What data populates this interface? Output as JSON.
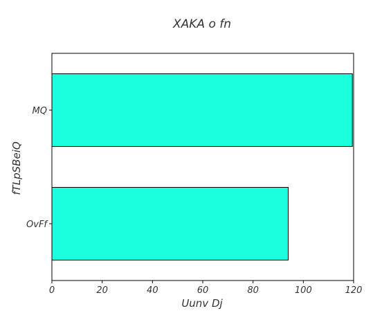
{
  "chart_data": {
    "type": "bar",
    "orientation": "horizontal",
    "title": "XAKA o fn",
    "xlabel": "Uunv  Dj",
    "ylabel": "fTLpSBeiQ",
    "categories": [
      "MQ",
      "OvFf"
    ],
    "values": [
      119.5,
      94
    ],
    "xlim": [
      0,
      120
    ],
    "xticks": [
      0,
      20,
      40,
      60,
      80,
      100,
      120
    ],
    "grid": false,
    "legend": "none",
    "bar_color": "#1cffde",
    "edge_color": "#000000"
  }
}
